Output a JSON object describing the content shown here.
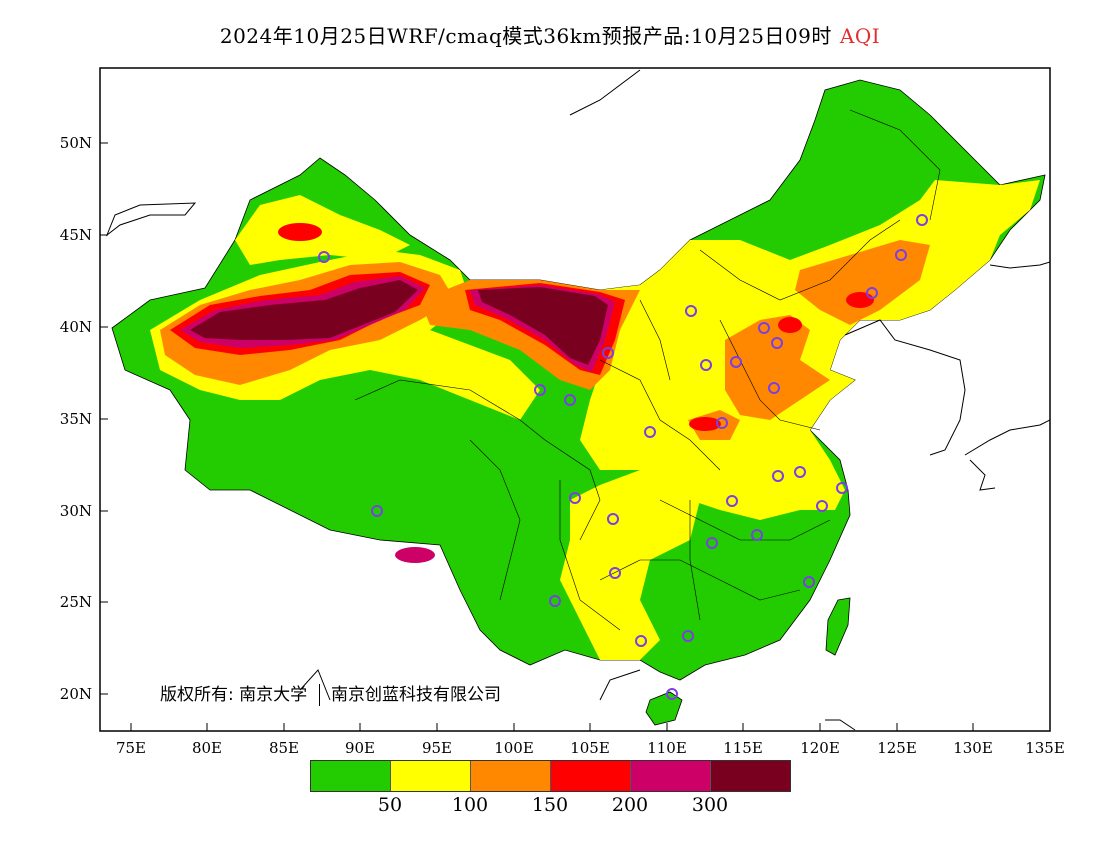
{
  "header": {
    "title": "2024年10月25日WRF/cmaq模式36km预报产品:10月25日09时",
    "variable": "AQI"
  },
  "axes": {
    "lat_ticks": [
      "50N",
      "45N",
      "40N",
      "35N",
      "30N",
      "25N",
      "20N"
    ],
    "lon_ticks": [
      "75E",
      "80E",
      "85E",
      "90E",
      "95E",
      "100E",
      "105E",
      "110E",
      "115E",
      "120E",
      "125E",
      "130E",
      "135E"
    ],
    "lat_range": [
      18,
      54
    ],
    "lon_range": [
      73,
      135
    ]
  },
  "copyright": {
    "prefix": "版权所有:",
    "org1": "南京大学",
    "org2": "南京创蓝科技有限公司"
  },
  "legend": {
    "colors": [
      "#22cc00",
      "#ffff00",
      "#ff8800",
      "#ff0000",
      "#cc0066",
      "#7a0020"
    ],
    "labels": [
      "50",
      "100",
      "150",
      "200",
      "300"
    ]
  },
  "colors": {
    "good": "#22cc00",
    "moderate": "#ffff00",
    "unhealthy_sensitive": "#ff8800",
    "unhealthy": "#ff0000",
    "very_unhealthy": "#cc0066",
    "hazardous": "#7a0020",
    "station_marker": "#7b3fe4",
    "title_variable": "#e03030"
  }
}
